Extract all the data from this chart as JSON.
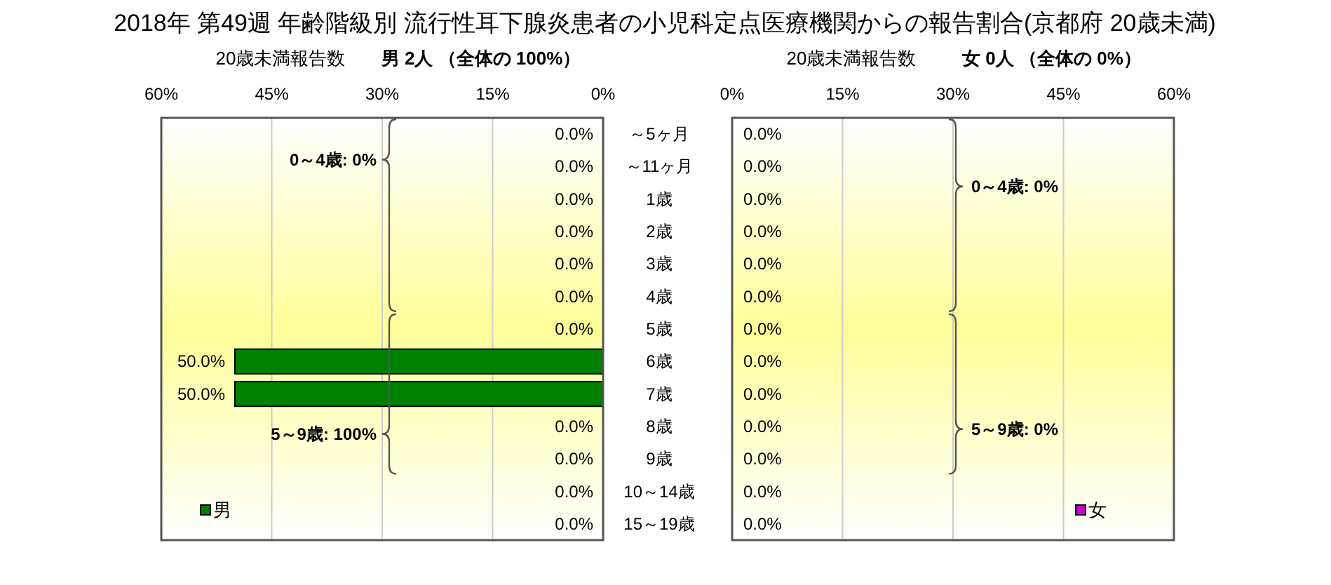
{
  "chart_data": [
    {
      "type": "bar",
      "orientation": "horizontal",
      "title": "2018年 第49週 年齢階級別 流行性耳下腺炎患者の小児科定点医療機関からの報告割合(京都府 20歳未満)",
      "subtitle": "男  2人 （全体の  100%）",
      "xlabel": "20歳未満報告数",
      "categories": [
        "～5ヶ月",
        "～11ヶ月",
        "1歳",
        "2歳",
        "3歳",
        "4歳",
        "5歳",
        "6歳",
        "7歳",
        "8歳",
        "9歳",
        "10～14歳",
        "15～19歳"
      ],
      "series": [
        {
          "name": "男",
          "color": "#008000",
          "values": [
            0,
            0,
            0,
            0,
            0,
            0,
            0,
            50,
            50,
            0,
            0,
            0,
            0
          ],
          "value_labels": [
            "0.0%",
            "0.0%",
            "0.0%",
            "0.0%",
            "0.0%",
            "0.0%",
            "0.0%",
            "50.0%",
            "50.0%",
            "0.0%",
            "0.0%",
            "0.0%",
            "0.0%"
          ]
        }
      ],
      "xlim": [
        60,
        0
      ],
      "xticks": [
        {
          "value": 60,
          "label": "60%"
        },
        {
          "value": 45,
          "label": "45%"
        },
        {
          "value": 30,
          "label": "30%"
        },
        {
          "value": 15,
          "label": "15%"
        },
        {
          "value": 0,
          "label": "0%"
        }
      ],
      "grid": "x",
      "legend": "bottom left",
      "annotations": [
        "0～4歳: 0%",
        "5～9歳: 100%"
      ]
    },
    {
      "type": "bar",
      "orientation": "horizontal",
      "subtitle": "女  0人 （全体の  0%）",
      "xlabel": "20歳未満報告数",
      "series": [
        {
          "name": "女",
          "color": "#cc00cc",
          "values": [
            0,
            0,
            0,
            0,
            0,
            0,
            0,
            0,
            0,
            0,
            0,
            0,
            0
          ],
          "value_labels": [
            "0.0%",
            "0.0%",
            "0.0%",
            "0.0%",
            "0.0%",
            "0.0%",
            "0.0%",
            "0.0%",
            "0.0%",
            "0.0%",
            "0.0%",
            "0.0%",
            "0.0%"
          ]
        }
      ],
      "xlim": [
        0,
        60
      ],
      "xticks": [
        {
          "value": 0,
          "label": "0%"
        },
        {
          "value": 15,
          "label": "15%"
        },
        {
          "value": 30,
          "label": "30%"
        },
        {
          "value": 45,
          "label": "45%"
        },
        {
          "value": 60,
          "label": "60%"
        }
      ],
      "grid": "x",
      "legend": "bottom right",
      "tick_labels": "x",
      "annotations": [
        "0～4歳: 0%",
        "5～9歳: 0%"
      ]
    }
  ]
}
